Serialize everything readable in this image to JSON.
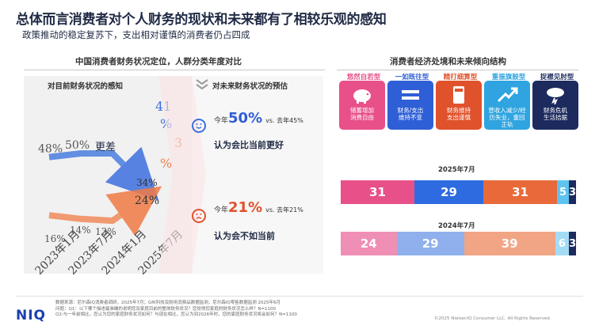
{
  "header": {
    "title": "总体而言消费者对个人财务的现状和未来都有了相较乐观的感知",
    "subtitle": "政策推动的稳定复苏下，支出相对谨慎的消费者仍占四成"
  },
  "left_section": {
    "heading": "中国消费者财务状况定位，人群分类年度对比",
    "current_label": "对目前财务状况的感知",
    "future_label": "对未来财务状况的预估"
  },
  "chart_data": {
    "type": "line",
    "categories": [
      "2023年1月",
      "2023年7月",
      "2024年1月",
      "2025年7月"
    ],
    "series": [
      {
        "name": "更差",
        "values": [
          48,
          50,
          null,
          34
        ],
        "color": "#4a7fe0"
      },
      {
        "name": "",
        "values": [
          16,
          14,
          13,
          24
        ],
        "color": "#f28a5a"
      }
    ],
    "data_labels": [
      "48%",
      "50%",
      "更差",
      "14%",
      "13%",
      "16%",
      "34%",
      "24%"
    ],
    "end_labels": {
      "blue_top": "41",
      "blue_pct": "%",
      "orange_3": "3",
      "orange_pct": "%"
    }
  },
  "future": {
    "better": {
      "prefix": "今年",
      "value": "50%",
      "compare": "vs. 去年45%",
      "label": "认为会比当前更好"
    },
    "worse": {
      "prefix": "今年",
      "value": "21%",
      "compare": "vs. 去年21%",
      "label": "认为会不如当前"
    }
  },
  "right_section": {
    "heading": "消费者经济处境和未来倾向结构",
    "cards": [
      {
        "title": "悠然自若型",
        "text": "储蓄增加\n消费自由",
        "color": "#e8508a",
        "title_color": "#e8508a",
        "icon": "piggy-bank-icon"
      },
      {
        "title": "一如既往型",
        "text": "财务/支出\n维持不变",
        "color": "#2f5fd6",
        "title_color": "#2f5fd6",
        "icon": "equals-icon"
      },
      {
        "title": "精打细算型",
        "text": "财务维持\n支出谨慎",
        "color": "#e0522c",
        "title_color": "#e0522c",
        "icon": "calculator-icon"
      },
      {
        "title": "重振旗鼓型",
        "text": "曾收入减少/经\n历失业，重回\n正轨",
        "color": "#2fa4e0",
        "title_color": "#2fa4e0",
        "icon": "growth-arrow-icon"
      },
      {
        "title": "捉襟见肘型",
        "text": "财务危机\n生活拮据",
        "color": "#1c2a5e",
        "title_color": "#1c2a5e",
        "icon": "storm-cloud-icon"
      }
    ],
    "bars": [
      {
        "label": "2025年7月",
        "segments": [
          {
            "value": 31,
            "text": "31",
            "color": "#e8508a"
          },
          {
            "value": 29,
            "text": "29",
            "color": "#2f6be0"
          },
          {
            "value": 31,
            "text": "31",
            "color": "#e86a3a"
          },
          {
            "value": 5,
            "text": "5",
            "color": "#5ec4ef"
          },
          {
            "value": 3,
            "text": "3",
            "color": "#1c2a5e"
          }
        ]
      },
      {
        "label": "2024年7月",
        "segments": [
          {
            "value": 24,
            "text": "24",
            "color": "#f08fb5"
          },
          {
            "value": 29,
            "text": "29",
            "color": "#8fb0ec"
          },
          {
            "value": 39,
            "text": "39",
            "color": "#f2a585"
          },
          {
            "value": 6,
            "text": "6",
            "color": "#a5dcf5"
          },
          {
            "value": 3,
            "text": "3",
            "color": "#1c2a5e"
          }
        ]
      }
    ]
  },
  "footer": {
    "logo": "NIQ",
    "source": "数据来源：尼尔森IQ消费者调研，2025年7月；GfK科技及耐用消费品数据监测，尼尔森IQ零售数据监测 2025年6月",
    "q1": "问题：Q1：以下哪个描述最准确的说明您及家庭目前的整体财务状况？您觉得您家庭的财务状况怎么样？N=1100",
    "q2": "Q2:与一年前相比，您认为您的家庭财务状况如何？与现在相比，您认为到2026年时，您的家庭财务状况将会如何？N=1100",
    "copyright": "©2025 NielsenIQ Consumer LLC. All Rights Reserved."
  }
}
